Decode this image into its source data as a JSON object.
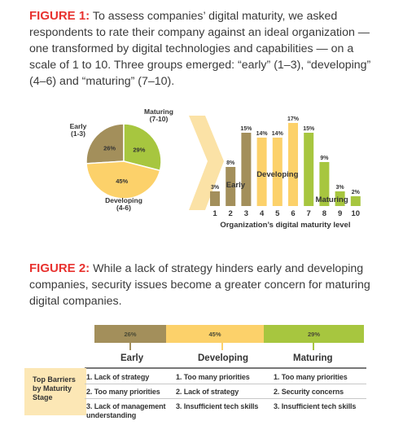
{
  "figure1": {
    "label": "FIGURE 1:",
    "text": " To assess companies’ digital maturity, we asked respondents to rate their company against an ideal organization — one transformed by digital technologies and capabilities — on a scale of 1 to 10. Three groups emerged: “early” (1–3), “developing” (4–6) and “maturing” (7–10)."
  },
  "figure2": {
    "label": "FIGURE 2:",
    "text": " While a lack of strategy hinders early and developing companies, security issues become a greater concern for maturing digital companies.",
    "segments": [
      "26%",
      "45%",
      "29%"
    ],
    "stages": [
      "Early",
      "Developing",
      "Maturing"
    ],
    "barrier_label": "Top Barriers by Maturity Stage",
    "barriers": {
      "early": [
        "1. Lack of strategy",
        "2. Too many priorities",
        "3. Lack of management understanding"
      ],
      "developing": [
        "1. Too many priorities",
        "2. Lack of strategy",
        "3. Insufficient tech skills"
      ],
      "maturing": [
        "1. Too many priorities",
        "2. Security concerns",
        "3. Insufficient tech skills"
      ]
    }
  },
  "colors": {
    "early": "#a38f5b",
    "developing": "#fcd16a",
    "maturing": "#a7c63f",
    "figure_label": "#e8322f"
  },
  "chart_data": [
    {
      "type": "pie",
      "categories": [
        "Early (1-3)",
        "Maturing (7-10)",
        "Developing (4-6)"
      ],
      "labels": [
        [
          "Early",
          "(1-3)"
        ],
        [
          "Maturing",
          "(7-10)"
        ],
        [
          "Developing",
          "(4-6)"
        ]
      ],
      "values": [
        26,
        29,
        45
      ],
      "value_labels": [
        "26%",
        "29%",
        "45%"
      ]
    },
    {
      "type": "bar",
      "categories": [
        "1",
        "2",
        "3",
        "4",
        "5",
        "6",
        "7",
        "8",
        "9",
        "10"
      ],
      "values": [
        3,
        8,
        15,
        14,
        14,
        17,
        15,
        9,
        3,
        2
      ],
      "value_labels": [
        "3%",
        "8%",
        "15%",
        "14%",
        "14%",
        "17%",
        "15%",
        "9%",
        "3%",
        "2%"
      ],
      "groups": [
        "Early",
        "Early",
        "Early",
        "Developing",
        "Developing",
        "Developing",
        "Maturing",
        "Maturing",
        "Maturing",
        "Maturing"
      ],
      "group_labels": [
        "Early",
        "Developing",
        "Maturing"
      ],
      "xlabel": "Organization’s digital maturity level",
      "ylim": [
        0,
        17
      ]
    }
  ]
}
